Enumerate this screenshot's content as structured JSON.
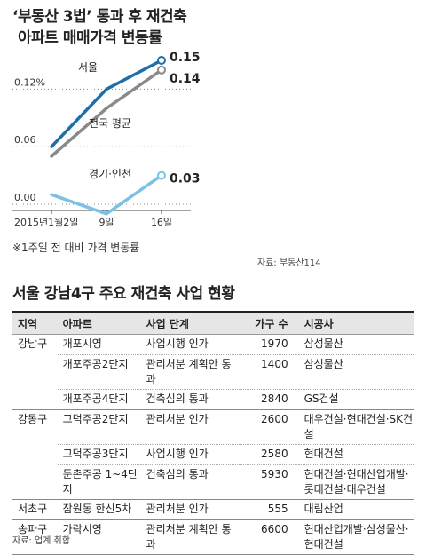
{
  "header": {
    "title_line1": "‘부동산 3법’ 통과 후 재건축",
    "title_line2": "아파트 매매가격 변동률"
  },
  "chart_data": {
    "type": "line",
    "x": [
      "2015년1월2일",
      "9일",
      "16일"
    ],
    "series": [
      {
        "name": "서울",
        "values": [
          0.06,
          0.12,
          0.15
        ],
        "color": "#1e6fa8"
      },
      {
        "name": "전국 평균",
        "values": [
          0.05,
          0.1,
          0.14
        ],
        "color": "#8a8a8a"
      },
      {
        "name": "경기·인천",
        "values": [
          0.01,
          -0.01,
          0.03
        ],
        "color": "#7cc1e4"
      }
    ],
    "y_tick_labels": [
      "0.12%",
      "0.06",
      "0.00"
    ],
    "end_labels": [
      "0.15",
      "0.14",
      "0.03"
    ],
    "ylim": [
      -0.015,
      0.16
    ]
  },
  "notes": {
    "footnote": "※1주일 전 대비 가격 변동률",
    "source": "자료: 부동산114"
  },
  "table": {
    "title": "서울 강남4구 주요 재건축 사업 현황",
    "headers": [
      "지역",
      "아파트",
      "사업 단계",
      "가구 수",
      "시공사"
    ],
    "rows": [
      {
        "region": "강남구",
        "apt": "개포시영",
        "stage": "사업시행 인가",
        "units": "1970",
        "builder": "삼성물산"
      },
      {
        "region": "",
        "apt": "개포주공2단지",
        "stage": "관리처분 계획안 통과",
        "units": "1400",
        "builder": "삼성물산"
      },
      {
        "region": "",
        "apt": "개포주공4단지",
        "stage": "건축심의 통과",
        "units": "2840",
        "builder": "GS건설"
      },
      {
        "region": "강동구",
        "apt": "고덕주공2단지",
        "stage": "관리처분 인가",
        "units": "2600",
        "builder": "대우건설·현대건설·SK건설"
      },
      {
        "region": "",
        "apt": "고덕주공3단지",
        "stage": "사업시행 인가",
        "units": "2580",
        "builder": "현대건설"
      },
      {
        "region": "",
        "apt": "둔촌주공 1~4단지",
        "stage": "건축심의 통과",
        "units": "5930",
        "builder": "현대건설·현대산업개발·롯데건설·대우건설"
      },
      {
        "region": "서초구",
        "apt": "잠원동 한신5차",
        "stage": "관리처분 인가",
        "units": "555",
        "builder": "대림산업"
      },
      {
        "region": "송파구",
        "apt": "가락시영",
        "stage": "관리처분 계획안 통과",
        "units": "6600",
        "builder": "현대산업개발·삼성물산·현대건설"
      }
    ],
    "source": "자료: 업계 취합"
  }
}
